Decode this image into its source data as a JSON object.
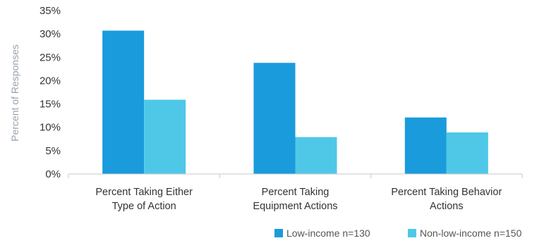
{
  "chart_data": {
    "type": "bar",
    "title": "",
    "xlabel": "",
    "ylabel": "Percent of Responses",
    "ylim": [
      0,
      35
    ],
    "yticks": [
      0,
      5,
      10,
      15,
      20,
      25,
      30,
      35
    ],
    "ytick_labels": [
      "0%",
      "5%",
      "10%",
      "15%",
      "20%",
      "25%",
      "30%",
      "35%"
    ],
    "categories": [
      [
        "Percent Taking Either",
        "Type of Action"
      ],
      [
        "Percent Taking",
        "Equipment Actions"
      ],
      [
        "Percent Taking Behavior",
        "Actions"
      ]
    ],
    "series": [
      {
        "name": "Low-income n=130",
        "color": "#1a9bdc",
        "values": [
          30.7,
          23.8,
          12.1
        ]
      },
      {
        "name": "Non-low-income n=150",
        "color": "#4fc8e8",
        "values": [
          15.9,
          7.9,
          8.9
        ]
      }
    ],
    "grid": false,
    "legend": "bottom-right"
  }
}
